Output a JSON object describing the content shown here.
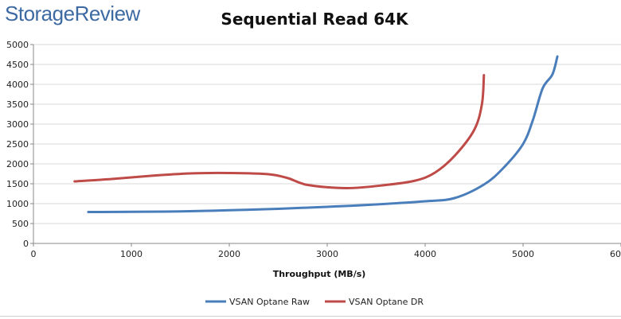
{
  "branding": {
    "logo_text": "StorageReview"
  },
  "chart_data": {
    "type": "line",
    "title": "Sequential Read 64K",
    "xlabel": "Throughput (MB/s)",
    "ylabel": "",
    "xlim": [
      0,
      6000
    ],
    "ylim": [
      0,
      5000
    ],
    "x_ticks": [
      "0",
      "1000",
      "2000",
      "3000",
      "4000",
      "5000",
      "6000"
    ],
    "y_ticks": [
      "0",
      "500",
      "1000",
      "1500",
      "2000",
      "2500",
      "3000",
      "3500",
      "4000",
      "4500",
      "5000"
    ],
    "grid": "horizontal",
    "legend_position": "bottom",
    "series": [
      {
        "name": "VSAN Optane Raw",
        "color": "#4a7ebb",
        "points": [
          [
            560,
            790
          ],
          [
            1000,
            795
          ],
          [
            1500,
            805
          ],
          [
            2000,
            835
          ],
          [
            2500,
            870
          ],
          [
            3000,
            920
          ],
          [
            3500,
            980
          ],
          [
            4000,
            1060
          ],
          [
            4300,
            1140
          ],
          [
            4600,
            1480
          ],
          [
            4800,
            1900
          ],
          [
            5000,
            2500
          ],
          [
            5100,
            3100
          ],
          [
            5200,
            3900
          ],
          [
            5300,
            4250
          ],
          [
            5350,
            4700
          ]
        ]
      },
      {
        "name": "VSAN Optane DR",
        "color": "#be4b48",
        "points": [
          [
            420,
            1560
          ],
          [
            800,
            1620
          ],
          [
            1200,
            1700
          ],
          [
            1600,
            1760
          ],
          [
            2000,
            1770
          ],
          [
            2400,
            1740
          ],
          [
            2600,
            1640
          ],
          [
            2800,
            1470
          ],
          [
            3200,
            1390
          ],
          [
            3600,
            1470
          ],
          [
            3900,
            1580
          ],
          [
            4100,
            1780
          ],
          [
            4300,
            2200
          ],
          [
            4500,
            2850
          ],
          [
            4580,
            3500
          ],
          [
            4600,
            4230
          ]
        ]
      }
    ]
  }
}
